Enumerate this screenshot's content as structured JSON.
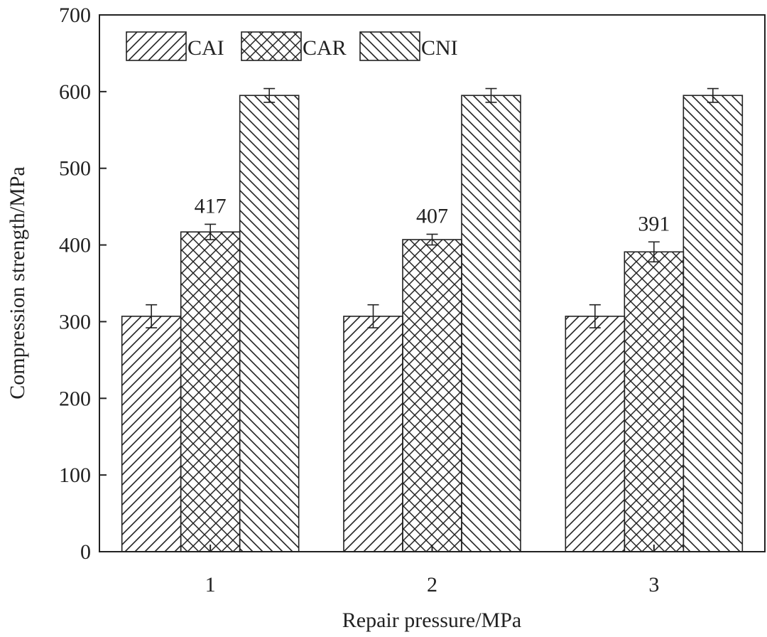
{
  "chart_data": {
    "type": "bar",
    "title": "",
    "xlabel": "Repair pressure/MPa",
    "ylabel": "Compression strength/MPa",
    "categories": [
      "1",
      "2",
      "3"
    ],
    "ylim": [
      0,
      700
    ],
    "yticks": [
      0,
      100,
      200,
      300,
      400,
      500,
      600,
      700
    ],
    "grid": false,
    "legend_placement": "top-left",
    "series": [
      {
        "name": "CAI",
        "pattern": "forward-diagonal-hatch",
        "values": [
          307,
          307,
          307
        ],
        "errors": [
          15,
          15,
          15
        ]
      },
      {
        "name": "CAR",
        "pattern": "cross-hatch",
        "values": [
          417,
          407,
          391
        ],
        "errors": [
          10,
          7,
          13
        ]
      },
      {
        "name": "CNI",
        "pattern": "back-diagonal-hatch",
        "values": [
          595,
          595,
          595
        ],
        "errors": [
          9,
          9,
          9
        ]
      }
    ],
    "data_labels": [
      {
        "series": "CAR",
        "category": "1",
        "text": "417"
      },
      {
        "series": "CAR",
        "category": "2",
        "text": "407"
      },
      {
        "series": "CAR",
        "category": "3",
        "text": "391"
      }
    ],
    "colors": {
      "stroke": "#222222",
      "background": "#ffffff"
    }
  }
}
